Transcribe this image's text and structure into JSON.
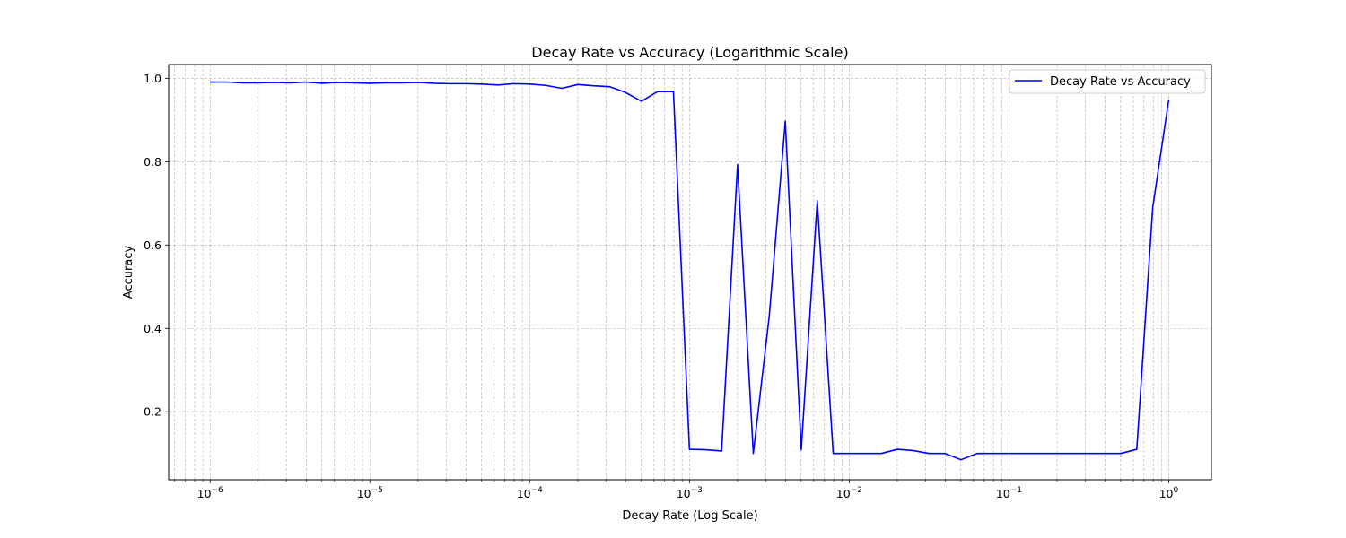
{
  "chart_data": {
    "type": "line",
    "title": "Decay Rate vs Accuracy (Logarithmic Scale)",
    "xlabel": "Decay Rate (Log Scale)",
    "ylabel": "Accuracy",
    "xscale": "log",
    "xlim": [
      5.5e-07,
      1.85
    ],
    "ylim": [
      0.037,
      1.033
    ],
    "x_ticks": [
      {
        "value": 1e-06,
        "base": "10",
        "exp": "−6"
      },
      {
        "value": 1e-05,
        "base": "10",
        "exp": "−5"
      },
      {
        "value": 0.0001,
        "base": "10",
        "exp": "−4"
      },
      {
        "value": 0.001,
        "base": "10",
        "exp": "−3"
      },
      {
        "value": 0.01,
        "base": "10",
        "exp": "−2"
      },
      {
        "value": 0.1,
        "base": "10",
        "exp": "−1"
      },
      {
        "value": 1,
        "base": "10",
        "exp": "0"
      }
    ],
    "y_ticks": [
      {
        "value": 0.2,
        "label": "0.2"
      },
      {
        "value": 0.4,
        "label": "0.4"
      },
      {
        "value": 0.6,
        "label": "0.6"
      },
      {
        "value": 0.8,
        "label": "0.8"
      },
      {
        "value": 1.0,
        "label": "1.0"
      }
    ],
    "grid": true,
    "legend_position": "top-right",
    "series": [
      {
        "name": "Decay Rate vs Accuracy",
        "color": "#0000ff",
        "x": [
          1e-06,
          1.26e-06,
          1.59e-06,
          2e-06,
          2.51e-06,
          3.16e-06,
          3.98e-06,
          5.01e-06,
          6.31e-06,
          7.94e-06,
          1e-05,
          1.26e-05,
          1.59e-05,
          2e-05,
          2.51e-05,
          3.16e-05,
          3.98e-05,
          5.01e-05,
          6.31e-05,
          7.94e-05,
          0.0001,
          0.000126,
          0.000159,
          0.0002,
          0.000251,
          0.000316,
          0.000398,
          0.000501,
          0.000631,
          0.000794,
          0.001,
          0.00126,
          0.00159,
          0.002,
          0.00251,
          0.00316,
          0.00398,
          0.00501,
          0.00631,
          0.00794,
          0.01,
          0.0126,
          0.0159,
          0.02,
          0.0251,
          0.0316,
          0.0398,
          0.0501,
          0.0631,
          0.0794,
          0.1,
          0.126,
          0.159,
          0.2,
          0.251,
          0.316,
          0.398,
          0.501,
          0.631,
          0.794,
          1
        ],
        "y": [
          0.991,
          0.991,
          0.989,
          0.989,
          0.99,
          0.989,
          0.991,
          0.988,
          0.99,
          0.989,
          0.988,
          0.989,
          0.989,
          0.99,
          0.988,
          0.987,
          0.987,
          0.986,
          0.984,
          0.987,
          0.986,
          0.983,
          0.976,
          0.985,
          0.982,
          0.98,
          0.966,
          0.945,
          0.968,
          0.968,
          0.11,
          0.109,
          0.106,
          0.793,
          0.1,
          0.43,
          0.897,
          0.109,
          0.706,
          0.1,
          0.1,
          0.1,
          0.1,
          0.11,
          0.107,
          0.1,
          0.1,
          0.085,
          0.1,
          0.1,
          0.1,
          0.1,
          0.1,
          0.1,
          0.1,
          0.1,
          0.1,
          0.1,
          0.11,
          0.69,
          0.948
        ]
      }
    ]
  }
}
